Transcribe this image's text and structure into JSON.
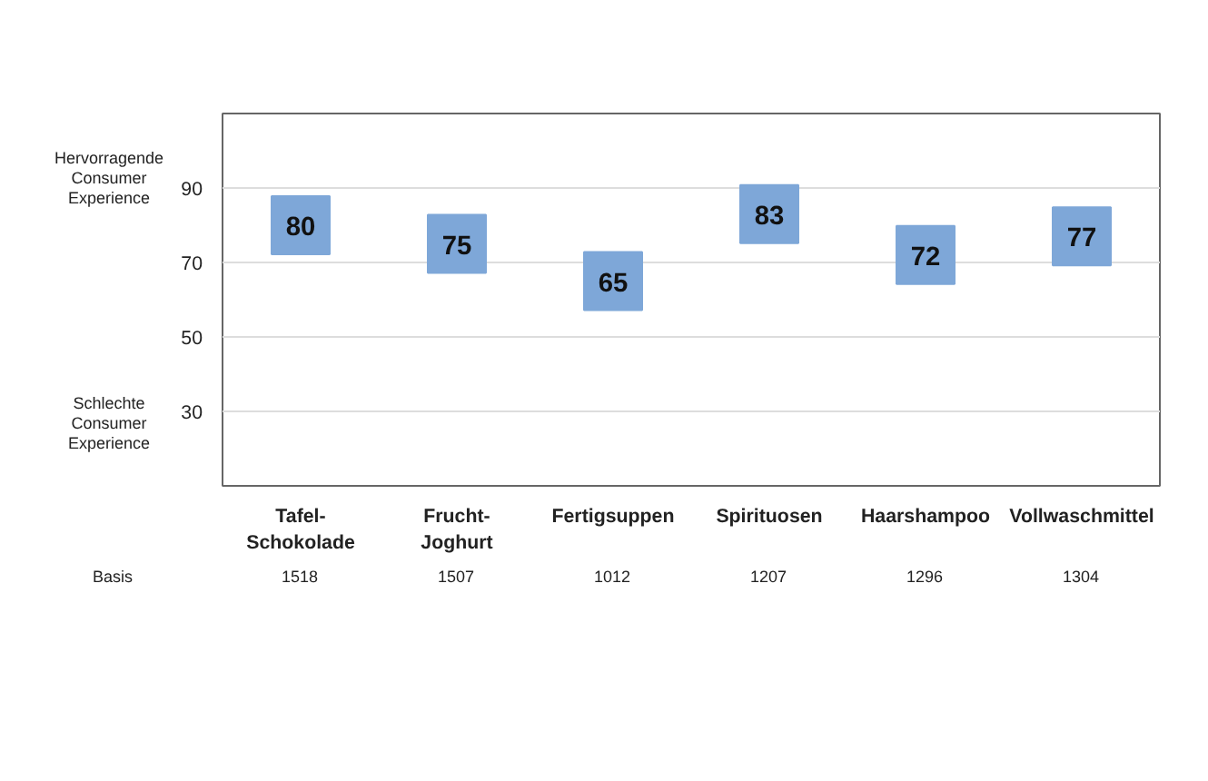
{
  "chart_data": {
    "type": "scatter",
    "marker": "square",
    "categories": [
      "Tafel-\nSchokolade",
      "Frucht-\nJoghurt",
      "Fertigsuppen",
      "Spirituosen",
      "Haarshampoo",
      "Vollwaschmittel"
    ],
    "series": [
      {
        "color": "#7ea7d8",
        "values": [
          80,
          75,
          65,
          83,
          72,
          77
        ]
      }
    ],
    "ylim": [
      10,
      110
    ],
    "yticks": [
      30,
      50,
      70,
      90
    ],
    "grid": "y",
    "data_labels": true,
    "annotations": [
      "Hervorragende\nConsumer\nExperience",
      "Schlechte\nConsumer\nExperience",
      "Basis",
      "1518",
      "1507",
      "1012",
      "1207",
      "1296",
      "1304"
    ]
  }
}
